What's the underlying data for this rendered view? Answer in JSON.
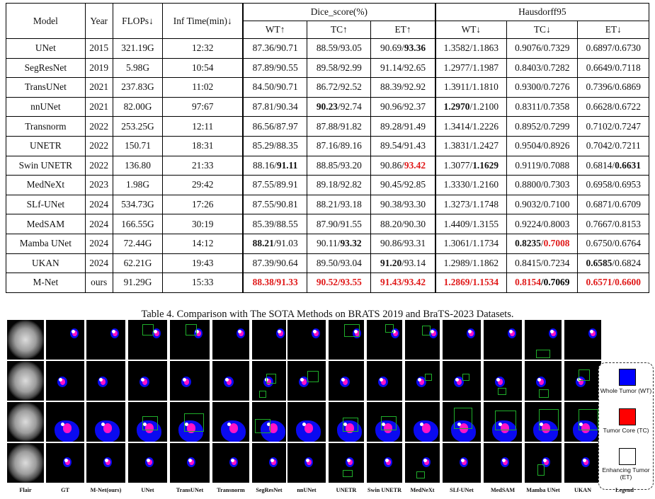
{
  "table": {
    "headers": {
      "model": "Model",
      "year": "Year",
      "flops": "FLOPs↓",
      "inf": "Inf Time(min)↓",
      "dice_group": "Dice_score(%)",
      "haus_group": "Hausdorff95",
      "sub": [
        "WT↑",
        "TC↑",
        "ET↑",
        "WT↓",
        "TC↓",
        "ET↓"
      ]
    },
    "rows": [
      {
        "model": "UNet",
        "year": "2015",
        "flops": "321.19G",
        "inf": "12:32",
        "cells": [
          [
            "87.36/90.71"
          ],
          [
            "88.59/93.05"
          ],
          [
            "90.69/",
            [
              "93.36",
              "b"
            ]
          ],
          [
            "1.3582/1.1863"
          ],
          [
            "0.9076/0.7329"
          ],
          [
            "0.6897/0.6730"
          ]
        ]
      },
      {
        "model": "SegResNet",
        "year": "2019",
        "flops": "5.98G",
        "inf": "10:54",
        "cells": [
          [
            "87.89/90.55"
          ],
          [
            "89.58/92.99"
          ],
          [
            "91.14/92.65"
          ],
          [
            "1.2977/1.1987"
          ],
          [
            "0.8403/0.7282"
          ],
          [
            "0.6649/0.7118"
          ]
        ]
      },
      {
        "model": "TransUNet",
        "year": "2021",
        "flops": "237.83G",
        "inf": "11:02",
        "cells": [
          [
            "84.50/90.71"
          ],
          [
            "86.72/92.52"
          ],
          [
            "88.39/92.92"
          ],
          [
            "1.3911/1.1810"
          ],
          [
            "0.9300/0.7276"
          ],
          [
            "0.7396/0.6869"
          ]
        ]
      },
      {
        "model": "nnUNet",
        "year": "2021",
        "flops": "82.00G",
        "inf": "97:67",
        "cells": [
          [
            "87.81/90.34"
          ],
          [
            [
              "90.23",
              "b"
            ],
            "/92.74"
          ],
          [
            "90.96/92.37"
          ],
          [
            [
              "1.2970",
              "b"
            ],
            "/1.2100"
          ],
          [
            "0.8311/0.7358"
          ],
          [
            "0.6628/0.6722"
          ]
        ]
      },
      {
        "model": "Transnorm",
        "year": "2022",
        "flops": "253.25G",
        "inf": "12:11",
        "cells": [
          [
            "86.56/87.97"
          ],
          [
            "87.88/91.82"
          ],
          [
            "89.28/91.49"
          ],
          [
            "1.3414/1.2226"
          ],
          [
            "0.8952/0.7299"
          ],
          [
            "0.7102/0.7247"
          ]
        ]
      },
      {
        "model": "UNETR",
        "year": "2022",
        "flops": "150.71",
        "inf": "18:31",
        "cells": [
          [
            "85.29/88.35"
          ],
          [
            "87.16/89.16"
          ],
          [
            "89.54/91.43"
          ],
          [
            "1.3831/1.2427"
          ],
          [
            "0.9504/0.8926"
          ],
          [
            "0.7042/0.7211"
          ]
        ]
      },
      {
        "model": "Swin UNETR",
        "year": "2022",
        "flops": "136.80",
        "inf": "21:33",
        "cells": [
          [
            "88.16/",
            [
              "91.11",
              "b"
            ]
          ],
          [
            "88.85/93.20"
          ],
          [
            "90.86/",
            [
              "93.42",
              "r"
            ]
          ],
          [
            "1.3077/",
            [
              "1.1629",
              "b"
            ]
          ],
          [
            "0.9119/0.7088"
          ],
          [
            "0.6814/",
            [
              "0.6631",
              "b"
            ]
          ]
        ]
      },
      {
        "model": "MedNeXt",
        "year": "2023",
        "flops": "1.98G",
        "inf": "29:42",
        "cells": [
          [
            "87.55/89.91"
          ],
          [
            "89.18/92.82"
          ],
          [
            "90.45/92.85"
          ],
          [
            "1.3330/1.2160"
          ],
          [
            "0.8800/0.7303"
          ],
          [
            "0.6958/0.6953"
          ]
        ]
      },
      {
        "model": "SLf-UNet",
        "year": "2024",
        "flops": "534.73G",
        "inf": "17:26",
        "cells": [
          [
            "87.55/90.81"
          ],
          [
            "88.21/93.18"
          ],
          [
            "90.38/93.30"
          ],
          [
            "1.3273/1.1748"
          ],
          [
            "0.9032/0.7100"
          ],
          [
            "0.6871/0.6709"
          ]
        ]
      },
      {
        "model": "MedSAM",
        "year": "2024",
        "flops": "166.55G",
        "inf": "30:19",
        "cells": [
          [
            "85.39/88.55"
          ],
          [
            "87.90/91.55"
          ],
          [
            "88.20/90.30"
          ],
          [
            "1.4409/1.3155"
          ],
          [
            "0.9224/0.8003"
          ],
          [
            "0.7667/0.8153"
          ]
        ]
      },
      {
        "model": "Mamba UNet",
        "year": "2024",
        "flops": "72.44G",
        "inf": "14:12",
        "cells": [
          [
            [
              "88.21",
              "b"
            ],
            "/91.03"
          ],
          [
            "90.11/",
            [
              "93.32",
              "b"
            ]
          ],
          [
            "90.86/93.31"
          ],
          [
            "1.3061/1.1734"
          ],
          [
            [
              "0.8235",
              "b"
            ],
            "/",
            [
              "0.7008",
              "r"
            ]
          ],
          [
            "0.6750/0.6764"
          ]
        ]
      },
      {
        "model": "UKAN",
        "year": "2024",
        "flops": "62.21G",
        "inf": "19:43",
        "cells": [
          [
            "87.39/90.64"
          ],
          [
            "89.50/93.04"
          ],
          [
            [
              "91.20",
              "b"
            ],
            "/93.14"
          ],
          [
            "1.2989/1.1862"
          ],
          [
            "0.8415/0.7234"
          ],
          [
            [
              "0.6585",
              "b"
            ],
            "/0.6824"
          ]
        ]
      },
      {
        "model": "M-Net",
        "year": "ours",
        "flops": "91.29G",
        "inf": "15:33",
        "cells": [
          [
            [
              "88.38/91.33",
              "r"
            ]
          ],
          [
            [
              "90.52/93.55",
              "r"
            ]
          ],
          [
            [
              "91.43/93.42",
              "r"
            ]
          ],
          [
            [
              "1.2869/1.1534",
              "r"
            ]
          ],
          [
            [
              "0.8154",
              "r"
            ],
            [
              "/0.7069",
              "k"
            ]
          ],
          [
            [
              "0.6571/0.6600",
              "r"
            ]
          ]
        ]
      }
    ]
  },
  "caption": "Table 4. Comparison with The SOTA Methods on BRATS 2019 and BraTS-2023 Datasets.",
  "figure": {
    "columns": [
      "Flair",
      "GT",
      "M-Net(ours)",
      "UNet",
      "TransUNet",
      "Transnorm",
      "SegResNet",
      "nnUNet",
      "UNETR",
      "Swin UNETR",
      "MedNeXt",
      "SLf-UNet",
      "MedSAM",
      "Mamba UNet",
      "UKAN"
    ],
    "legend": {
      "title": "Legend",
      "items": [
        {
          "label": "Whole Tumor (WT)",
          "color": "#0000ff"
        },
        {
          "label": "Tumor Core (TC)",
          "color": "#ff0000"
        },
        {
          "label": "Enhancing Tumor (ET)",
          "color": "#ffffff"
        }
      ]
    }
  }
}
